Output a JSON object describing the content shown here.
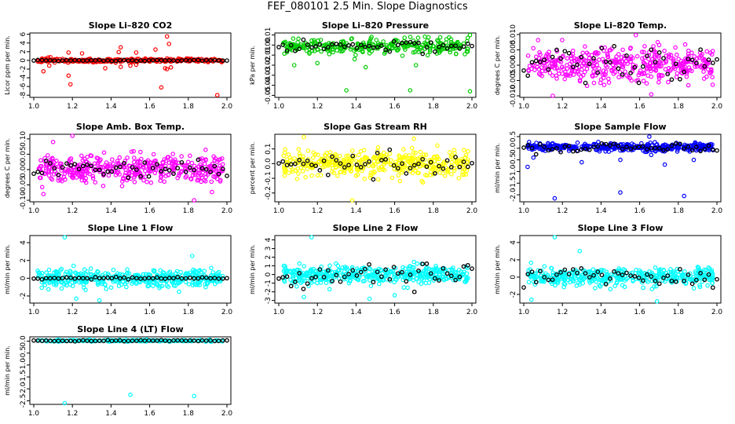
{
  "figure": {
    "title": "FEF_080101  2.5 Min. Slope Diagnostics"
  },
  "chart_data": [
    {
      "type": "scatter",
      "title": "Slope Li–820 CO2",
      "xlabel": "",
      "ylabel": "Licor ppm per min.",
      "xlim": [
        1.0,
        2.0
      ],
      "ylim": [
        -8.5,
        6.3
      ],
      "xticks": [
        "1.0",
        "1.2",
        "1.4",
        "1.6",
        "1.8",
        "2.0"
      ],
      "yticks": [
        "-8",
        "-6",
        "-4",
        "-2",
        "0",
        "2",
        "4",
        "6"
      ],
      "color": "#ff0000",
      "base": 0,
      "spread": 0.35,
      "n": 320,
      "seed": 11,
      "outliers": [
        [
          1.05,
          -2.5
        ],
        [
          1.08,
          -1.2
        ],
        [
          1.18,
          1.8
        ],
        [
          1.18,
          -3.5
        ],
        [
          1.19,
          -5.5
        ],
        [
          1.25,
          1.6
        ],
        [
          1.37,
          -1.8
        ],
        [
          1.44,
          1.9
        ],
        [
          1.45,
          3.0
        ],
        [
          1.45,
          -1.5
        ],
        [
          1.5,
          -1.2
        ],
        [
          1.53,
          1.8
        ],
        [
          1.53,
          -1.0
        ],
        [
          1.63,
          2.5
        ],
        [
          1.66,
          -6.2
        ],
        [
          1.68,
          -1.8
        ],
        [
          1.69,
          5.5
        ],
        [
          1.69,
          -2.0
        ],
        [
          1.7,
          3.8
        ],
        [
          1.71,
          -1.6
        ],
        [
          1.95,
          -8.0
        ]
      ],
      "black_spread": 0.1
    },
    {
      "type": "scatter",
      "title": "Slope Li–820 Pressure",
      "xlabel": "",
      "ylabel": "kPa per min.",
      "xlim": [
        1.0,
        2.0
      ],
      "ylim": [
        -0.052,
        0.012
      ],
      "xticks": [
        "1.0",
        "1.2",
        "1.4",
        "1.6",
        "1.8",
        "2.0"
      ],
      "yticks": [
        "-0.05",
        "-0.04",
        "-0.03",
        "-0.02",
        "-0.01",
        "0.00",
        "0.01"
      ],
      "color": "#00cc00",
      "base": -0.001,
      "spread": 0.006,
      "n": 300,
      "seed": 23,
      "outliers": [
        [
          1.35,
          -0.045
        ],
        [
          1.68,
          -0.045
        ],
        [
          1.99,
          -0.046
        ],
        [
          1.08,
          -0.02
        ],
        [
          1.2,
          -0.018
        ],
        [
          1.45,
          -0.022
        ],
        [
          1.71,
          -0.02
        ],
        [
          1.48,
          0.008
        ],
        [
          1.99,
          0.01
        ]
      ],
      "black_spread": 0.004
    },
    {
      "type": "scatter",
      "title": "Slope Li–820 Temp.",
      "xlabel": "",
      "ylabel": "degrees C per min.",
      "xlim": [
        1.0,
        2.0
      ],
      "ylim": [
        -0.0105,
        0.0105
      ],
      "xticks": [
        "1.0",
        "1.2",
        "1.4",
        "1.6",
        "1.8",
        "2.0"
      ],
      "yticks": [
        "-0.010",
        "-0.005",
        "0.000",
        "0.005",
        "0.010"
      ],
      "color": "#ff00ff",
      "base": 0,
      "spread": 0.0045,
      "n": 420,
      "seed": 37,
      "outliers": [
        [
          1.58,
          0.0098
        ],
        [
          1.15,
          -0.01
        ],
        [
          1.66,
          -0.0095
        ]
      ],
      "black_spread": 0.004
    },
    {
      "type": "scatter",
      "title": "Slope Amb. Box Temp.",
      "xlabel": "",
      "ylabel": "degrees C per min.",
      "xlim": [
        1.0,
        2.0
      ],
      "ylim": [
        -0.105,
        0.115
      ],
      "xticks": [
        "1.0",
        "1.2",
        "1.4",
        "1.6",
        "1.8",
        "2.0"
      ],
      "yticks": [
        "-0.10",
        "-0.05",
        "0.00",
        "0.05",
        "0.10"
      ],
      "color": "#ff00ff",
      "base": 0,
      "spread": 0.038,
      "n": 420,
      "seed": 41,
      "outliers": [
        [
          1.2,
          0.11
        ],
        [
          1.83,
          -0.1
        ],
        [
          1.1,
          0.09
        ],
        [
          1.05,
          -0.08
        ]
      ],
      "black_spread": 0.02
    },
    {
      "type": "scatter",
      "title": "Slope Gas Stream RH",
      "xlabel": "",
      "ylabel": "percent per min.",
      "xlim": [
        1.0,
        2.0
      ],
      "ylim": [
        -0.26,
        0.2
      ],
      "xticks": [
        "1.0",
        "1.2",
        "1.4",
        "1.6",
        "1.8",
        "2.0"
      ],
      "yticks": [
        "-0.2",
        "-0.1",
        "0.0",
        "0.1"
      ],
      "color": "#ffff00",
      "base": 0,
      "spread": 0.075,
      "n": 420,
      "seed": 53,
      "outliers": [
        [
          1.38,
          -0.25
        ],
        [
          1.13,
          0.18
        ],
        [
          1.7,
          0.17
        ]
      ],
      "black_spread": 0.06
    },
    {
      "type": "scatter",
      "title": "Slope Sample Flow",
      "xlabel": "",
      "ylabel": "ml/min per min.",
      "xlim": [
        1.0,
        2.0
      ],
      "ylim": [
        -2.3,
        0.6
      ],
      "xticks": [
        "1.0",
        "1.2",
        "1.4",
        "1.6",
        "1.8",
        "2.0"
      ],
      "yticks": [
        "-2.0",
        "-1.5",
        "-1.0",
        "-0.5",
        "0.0",
        "0.5"
      ],
      "color": "#0000ff",
      "base": 0.05,
      "spread": 0.14,
      "n": 420,
      "seed": 61,
      "outliers": [
        [
          1.02,
          -0.8
        ],
        [
          1.16,
          -2.15
        ],
        [
          1.3,
          -0.6
        ],
        [
          1.5,
          -1.9
        ],
        [
          1.65,
          0.5
        ],
        [
          1.73,
          -0.7
        ],
        [
          1.83,
          -2.05
        ],
        [
          1.88,
          -0.5
        ],
        [
          1.05,
          -0.4
        ],
        [
          1.5,
          -0.5
        ]
      ],
      "black_spread": 0.15
    },
    {
      "type": "scatter",
      "title": "Slope Line 1 Flow",
      "xlabel": "",
      "ylabel": "ml/min per min.",
      "xlim": [
        1.0,
        2.0
      ],
      "ylim": [
        -2.8,
        4.8
      ],
      "xticks": [
        "1.0",
        "1.2",
        "1.4",
        "1.6",
        "1.8",
        "2.0"
      ],
      "yticks": [
        "-2",
        "0",
        "2",
        "4"
      ],
      "color": "#00ffff",
      "base": 0,
      "spread": 0.8,
      "n": 420,
      "seed": 71,
      "outliers": [
        [
          1.16,
          4.6
        ],
        [
          1.34,
          -2.5
        ],
        [
          1.22,
          -2.3
        ],
        [
          1.82,
          2.5
        ]
      ],
      "black_spread": 0.08
    },
    {
      "type": "scatter",
      "title": "Slope Line 2 Flow",
      "xlabel": "",
      "ylabel": "ml/min per min.",
      "xlim": [
        1.0,
        2.0
      ],
      "ylim": [
        -3.3,
        4.5
      ],
      "xticks": [
        "1.0",
        "1.2",
        "1.4",
        "1.6",
        "1.8",
        "2.0"
      ],
      "yticks": [
        "-3",
        "-2",
        "-1",
        "0",
        "1",
        "2",
        "3",
        "4"
      ],
      "color": "#00ffff",
      "base": 0,
      "spread": 0.85,
      "n": 420,
      "seed": 83,
      "outliers": [
        [
          1.17,
          4.3
        ],
        [
          1.13,
          -2.6
        ],
        [
          1.47,
          -2.8
        ],
        [
          1.6,
          -2.4
        ]
      ],
      "black_spread": 0.9
    },
    {
      "type": "scatter",
      "title": "Slope Line 3 Flow",
      "xlabel": "",
      "ylabel": "ml/min per min.",
      "xlim": [
        1.0,
        2.0
      ],
      "ylim": [
        -3.0,
        4.8
      ],
      "xticks": [
        "1.0",
        "1.2",
        "1.4",
        "1.6",
        "1.8",
        "2.0"
      ],
      "yticks": [
        "-2",
        "0",
        "2",
        "4"
      ],
      "color": "#00ffff",
      "base": 0,
      "spread": 0.9,
      "n": 420,
      "seed": 97,
      "outliers": [
        [
          1.16,
          4.6
        ],
        [
          1.04,
          -2.6
        ],
        [
          1.69,
          -2.8
        ],
        [
          1.29,
          3.0
        ]
      ],
      "black_spread": 0.9
    },
    {
      "type": "scatter",
      "title": "Slope Line 4 (LT) Flow",
      "xlabel": "",
      "ylabel": "ml/min per min.",
      "xlim": [
        1.0,
        2.0
      ],
      "ylim": [
        -2.65,
        0.18
      ],
      "xticks": [
        "1.0",
        "1.2",
        "1.4",
        "1.6",
        "1.8",
        "2.0"
      ],
      "yticks": [
        "-2.5",
        "-2.0",
        "-1.5",
        "-1.0",
        "-0.5",
        "0.0"
      ],
      "color": "#00ffff",
      "base": 0.02,
      "spread": 0.03,
      "n": 200,
      "seed": 101,
      "outliers": [
        [
          1.16,
          -2.6
        ],
        [
          1.5,
          -2.25
        ],
        [
          1.83,
          -2.3
        ]
      ],
      "black_spread": 0.015
    }
  ]
}
